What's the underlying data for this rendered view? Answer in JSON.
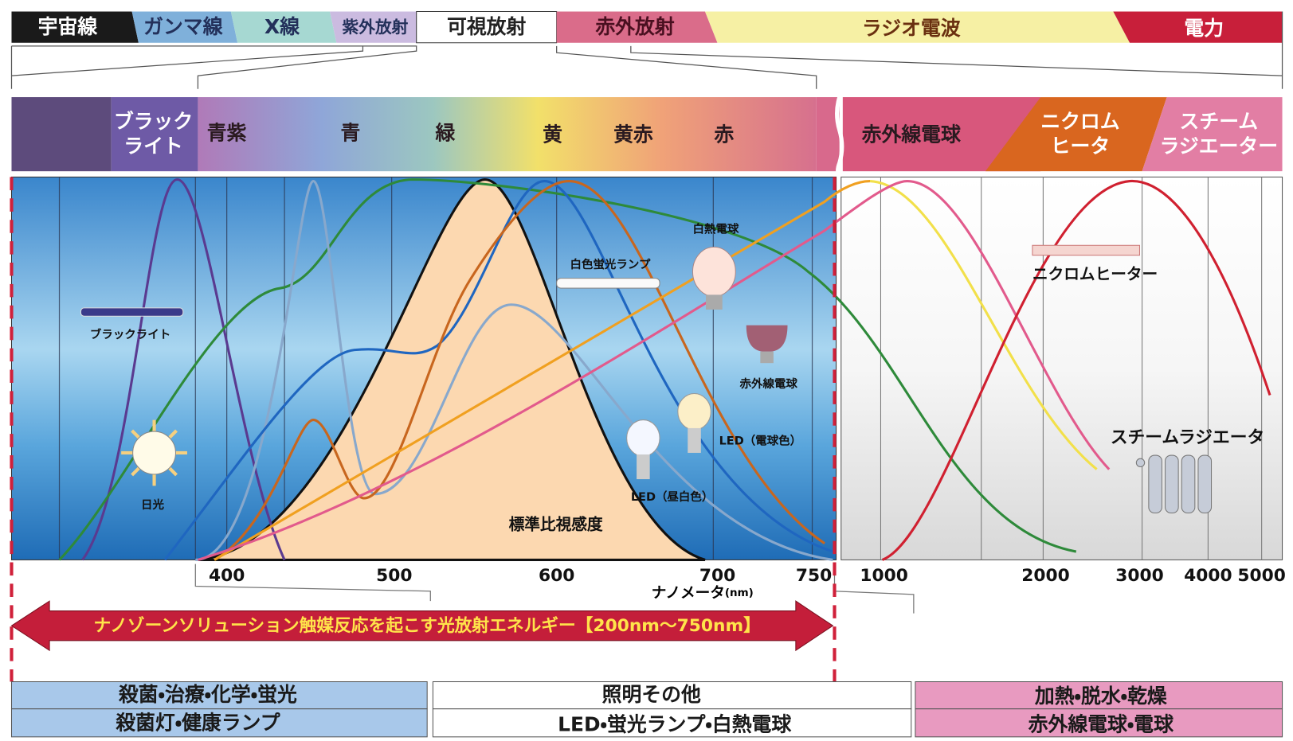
{
  "spectrum_bands": [
    "宇宙線",
    "ガンマ線",
    "X線",
    "紫外放射",
    "可視放射",
    "赤外放射",
    "ラジオ電波",
    "電力"
  ],
  "detail_bands": [
    [
      "ブラック",
      "ライト"
    ],
    [
      "青紫"
    ],
    [
      "青"
    ],
    [
      "緑"
    ],
    [
      "黄"
    ],
    [
      "黄赤"
    ],
    [
      "赤"
    ],
    [
      "赤外線電球"
    ],
    [
      "ニクロム",
      "ヒータ"
    ],
    [
      "スチーム",
      "ラジエーター"
    ]
  ],
  "x_axis": {
    "ticks": [
      400,
      500,
      600,
      700,
      750,
      1000,
      2000,
      3000,
      4000,
      5000
    ],
    "label": "ナノメータ",
    "unit": "(nm)"
  },
  "source_labels": {
    "black_light": "ブラックライト",
    "sunlight": "日光",
    "fluorescent": "白色蛍光ランプ",
    "incandescent": "白熱電球",
    "infrared_bulb": "赤外線電球",
    "led_warm": "LED（電球色）",
    "led_daylight": "LED（昼白色）",
    "luminosity": "標準比視感度",
    "nichrome": "ニクロムヒーター",
    "radiator": "スチームラジエータ"
  },
  "banner": "ナノゾーンソリューション触媒反応を起こす光放射エネルギー【200nm～750nm】",
  "uses": [
    {
      "purpose": "殺菌・治療・化学・蛍光",
      "examples": "殺菌灯・健康ランプ"
    },
    {
      "purpose": "照明その他",
      "examples": "LED・蛍光ランプ・白熱電球"
    },
    {
      "purpose": "加熱・脱水・乾燥",
      "examples": "赤外線電球・電球"
    }
  ]
}
